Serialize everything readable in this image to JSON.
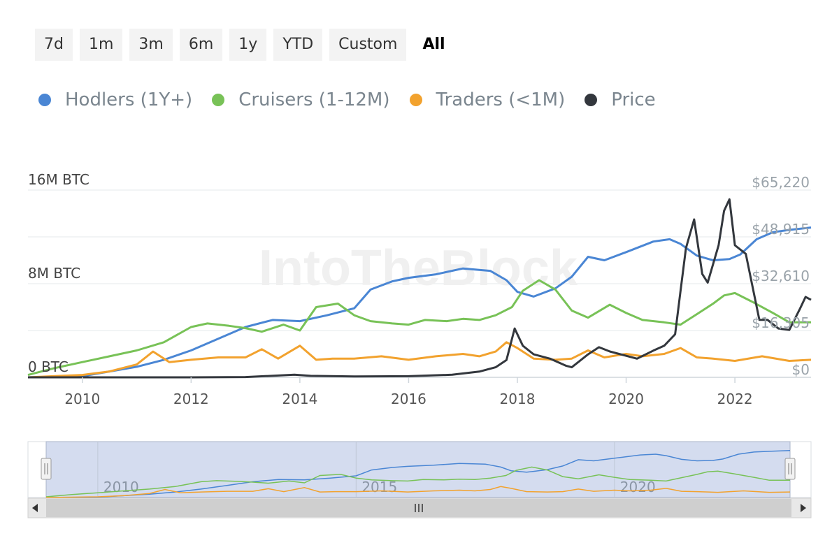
{
  "range_buttons": [
    {
      "label": "7d",
      "active": false
    },
    {
      "label": "1m",
      "active": false
    },
    {
      "label": "3m",
      "active": false
    },
    {
      "label": "6m",
      "active": false
    },
    {
      "label": "1y",
      "active": false
    },
    {
      "label": "YTD",
      "active": false
    },
    {
      "label": "Custom",
      "active": false
    },
    {
      "label": "All",
      "active": true
    }
  ],
  "watermark": "IntoTheBlock",
  "chart_data": {
    "type": "line",
    "title": "",
    "x_range": [
      2009.0,
      2023.4
    ],
    "x_ticks": [
      "2010",
      "2012",
      "2014",
      "2016",
      "2018",
      "2020",
      "2022"
    ],
    "y_left": {
      "ticks": [
        "0 BTC",
        "8M BTC",
        "16M BTC"
      ],
      "range": [
        0,
        16000000
      ]
    },
    "y_right": {
      "ticks": [
        "$0",
        "$16,305",
        "$32,610",
        "$48,915",
        "$65,220"
      ],
      "range": [
        0,
        65220
      ]
    },
    "grid": true,
    "legend_position": "top-left",
    "series": [
      {
        "name": "Hodlers (1Y+)",
        "color": "#4a86d4",
        "axis": "left",
        "x": [
          2009.0,
          2010.0,
          2010.5,
          2011.0,
          2011.5,
          2012.0,
          2012.5,
          2013.0,
          2013.5,
          2014.0,
          2014.5,
          2015.0,
          2015.3,
          2015.7,
          2016.0,
          2016.5,
          2017.0,
          2017.5,
          2017.8,
          2018.0,
          2018.3,
          2018.7,
          2019.0,
          2019.3,
          2019.6,
          2020.0,
          2020.5,
          2020.8,
          2021.0,
          2021.3,
          2021.6,
          2021.9,
          2022.1,
          2022.4,
          2022.7,
          2023.0,
          2023.4
        ],
        "y": [
          0,
          100000,
          500000,
          900000,
          1500000,
          2300000,
          3300000,
          4300000,
          4900000,
          4800000,
          5300000,
          5900000,
          7500000,
          8200000,
          8500000,
          8800000,
          9300000,
          9100000,
          8300000,
          7300000,
          6900000,
          7600000,
          8600000,
          10300000,
          10000000,
          10700000,
          11600000,
          11800000,
          11400000,
          10400000,
          10000000,
          10100000,
          10500000,
          11800000,
          12400000,
          12600000,
          12800000
        ]
      },
      {
        "name": "Cruisers (1-12M)",
        "color": "#78c257",
        "axis": "left",
        "x": [
          2009.0,
          2009.5,
          2010.0,
          2010.5,
          2011.0,
          2011.5,
          2012.0,
          2012.3,
          2012.7,
          2013.0,
          2013.3,
          2013.7,
          2014.0,
          2014.3,
          2014.7,
          2015.0,
          2015.3,
          2015.7,
          2016.0,
          2016.3,
          2016.7,
          2017.0,
          2017.3,
          2017.6,
          2017.9,
          2018.1,
          2018.4,
          2018.7,
          2019.0,
          2019.3,
          2019.7,
          2020.0,
          2020.3,
          2020.7,
          2021.0,
          2021.3,
          2021.6,
          2021.8,
          2022.0,
          2022.3,
          2022.7,
          2023.0,
          2023.4
        ],
        "y": [
          200000,
          800000,
          1300000,
          1800000,
          2300000,
          3000000,
          4300000,
          4600000,
          4400000,
          4200000,
          3900000,
          4500000,
          4000000,
          6000000,
          6300000,
          5300000,
          4800000,
          4600000,
          4500000,
          4900000,
          4800000,
          5000000,
          4900000,
          5300000,
          6000000,
          7400000,
          8300000,
          7500000,
          5700000,
          5100000,
          6200000,
          5500000,
          4900000,
          4700000,
          4500000,
          5400000,
          6300000,
          7000000,
          7200000,
          6500000,
          5500000,
          4700000,
          4700000
        ]
      },
      {
        "name": "Traders (<1M)",
        "color": "#f2a22e",
        "axis": "left",
        "x": [
          2009.0,
          2009.5,
          2010.0,
          2010.5,
          2011.0,
          2011.3,
          2011.6,
          2012.0,
          2012.5,
          2013.0,
          2013.3,
          2013.6,
          2014.0,
          2014.3,
          2014.6,
          2015.0,
          2015.5,
          2016.0,
          2016.5,
          2017.0,
          2017.3,
          2017.6,
          2017.8,
          2018.0,
          2018.3,
          2018.7,
          2019.0,
          2019.3,
          2019.6,
          2020.0,
          2020.3,
          2020.7,
          2021.0,
          2021.3,
          2021.6,
          2022.0,
          2022.5,
          2023.0,
          2023.4
        ],
        "y": [
          0,
          100000,
          200000,
          500000,
          1100000,
          2200000,
          1300000,
          1500000,
          1700000,
          1700000,
          2400000,
          1600000,
          2700000,
          1500000,
          1600000,
          1600000,
          1800000,
          1500000,
          1800000,
          2000000,
          1800000,
          2200000,
          3000000,
          2500000,
          1600000,
          1500000,
          1600000,
          2300000,
          1700000,
          2000000,
          1800000,
          2000000,
          2500000,
          1700000,
          1600000,
          1400000,
          1800000,
          1400000,
          1500000
        ]
      },
      {
        "name": "Price",
        "color": "#33373d",
        "axis": "right",
        "x": [
          2009.0,
          2010.5,
          2012.0,
          2013.0,
          2013.9,
          2014.2,
          2015.0,
          2016.0,
          2016.8,
          2017.3,
          2017.6,
          2017.8,
          2017.95,
          2018.1,
          2018.3,
          2018.6,
          2018.9,
          2019.0,
          2019.3,
          2019.5,
          2019.7,
          2020.0,
          2020.2,
          2020.5,
          2020.7,
          2020.9,
          2021.0,
          2021.1,
          2021.25,
          2021.4,
          2021.5,
          2021.7,
          2021.8,
          2021.9,
          2022.0,
          2022.2,
          2022.45,
          2022.6,
          2022.8,
          2023.0,
          2023.2,
          2023.3,
          2023.4
        ],
        "y": [
          0,
          0,
          0,
          100,
          900,
          500,
          300,
          400,
          900,
          2000,
          3500,
          6000,
          17000,
          11000,
          8000,
          6500,
          4000,
          3500,
          8000,
          10500,
          9000,
          7500,
          6500,
          9300,
          11000,
          15000,
          30000,
          45000,
          55000,
          36000,
          33000,
          46000,
          58000,
          62000,
          46000,
          43000,
          20000,
          20000,
          17000,
          16500,
          24000,
          28000,
          27000
        ]
      }
    ]
  },
  "navigator": {
    "x_ticks": [
      "2010",
      "2015",
      "2020"
    ]
  }
}
